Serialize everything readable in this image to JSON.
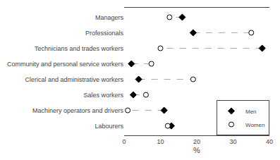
{
  "chart_data": {
    "type": "dot",
    "orientation": "horizontal",
    "categories": [
      "Managers",
      "Professionals",
      "Technicians and trades workers",
      "Community and personal service workers",
      "Clerical and administrative workers",
      "Sales workers",
      "Machinery operators and drivers",
      "Labourers"
    ],
    "series": [
      {
        "name": "Men",
        "color": "black",
        "marker": "diamond",
        "values": [
          16.0,
          19.0,
          38.0,
          2.0,
          4.0,
          2.5,
          11.0,
          13.0
        ]
      },
      {
        "name": "Women",
        "color": "white",
        "marker": "circle",
        "values": [
          12.5,
          35.0,
          10.0,
          7.5,
          19.0,
          6.0,
          1.0,
          12.0
        ]
      }
    ],
    "color": "#aaaaaa",
    "line_style": "dash",
    "xlabel": "%",
    "xlim": [
      0,
      40
    ],
    "xticks": [
      0,
      10,
      20,
      30,
      40
    ],
    "grid": false,
    "legend": "lower right"
  }
}
